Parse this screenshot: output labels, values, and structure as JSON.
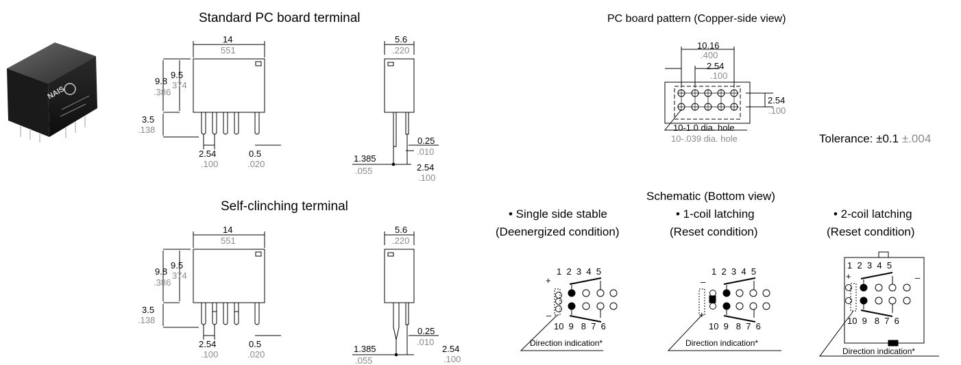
{
  "titles": {
    "standard": "Standard PC board terminal",
    "self_clinching": "Self-clinching terminal",
    "pc_pattern": "PC board pattern (Copper-side view)",
    "schematic": "Schematic (Bottom view)"
  },
  "photo_label": "NAIS",
  "standard": {
    "width_mm": "14",
    "width_in": "551",
    "h_total_mm": "9.8",
    "h_total_in": ".386",
    "h_body_mm": "9.5",
    "h_body_in": "374",
    "pin_len_mm": "3.5",
    "pin_len_in": ".138",
    "pitch_mm": "2.54",
    "pitch_in": ".100",
    "pin_w_mm": "0.5",
    "pin_w_in": ".020",
    "side_w_mm": "5.6",
    "side_w_in": ".220",
    "side_pin_mm": "0.25",
    "side_pin_in": ".010",
    "side_off_mm": "1.385",
    "side_off_in": ".055",
    "side_pitch_mm": "2.54",
    "side_pitch_in": ".100"
  },
  "clinch": {
    "width_mm": "14",
    "width_in": "551",
    "h_total_mm": "9.8",
    "h_total_in": ".386",
    "h_body_mm": "9.5",
    "h_body_in": "374",
    "pin_len_mm": "3.5",
    "pin_len_in": ".138",
    "pitch_mm": "2.54",
    "pitch_in": ".100",
    "pin_w_mm": "0.5",
    "pin_w_in": ".020",
    "side_w_mm": "5.6",
    "side_w_in": ".220",
    "side_pin_mm": "0.25",
    "side_pin_in": ".010",
    "side_off_mm": "1.385",
    "side_off_in": ".055",
    "side_pitch_mm": "2.54",
    "side_pitch_in": ".100"
  },
  "pattern": {
    "span_mm": "10.16",
    "span_in": ".400",
    "pitch_mm": "2.54",
    "pitch_in": ".100",
    "row_mm": "2.54",
    "row_in": ".100",
    "hole_mm": "10-1.0 dia. hole",
    "hole_in": "10-.039 dia. hole"
  },
  "tolerance": {
    "label": "Tolerance:",
    "mm": "±0.1",
    "in": "±.004"
  },
  "schematics": [
    {
      "title": "• Single side stable",
      "subtitle": "(Deenergized condition)",
      "top_pins": "1  2  3  4  5",
      "bottom_pins": "10  9   8  7  6",
      "plus": "+",
      "minus": "–",
      "note": "Direction indication*"
    },
    {
      "title": "• 1-coil latching",
      "subtitle": "(Reset condition)",
      "top_pins": "1  2  3  4  5",
      "bottom_pins": "10  9   8  7  6",
      "plus": "+",
      "minus": "–",
      "note": "Direction indication*"
    },
    {
      "title": "• 2-coil latching",
      "subtitle": "(Reset condition)",
      "top_pins": "1  2  3  4  5",
      "bottom_pins": "10  9   8  7  6",
      "plus": "+",
      "minus": "–",
      "note": "Direction indication*"
    }
  ]
}
